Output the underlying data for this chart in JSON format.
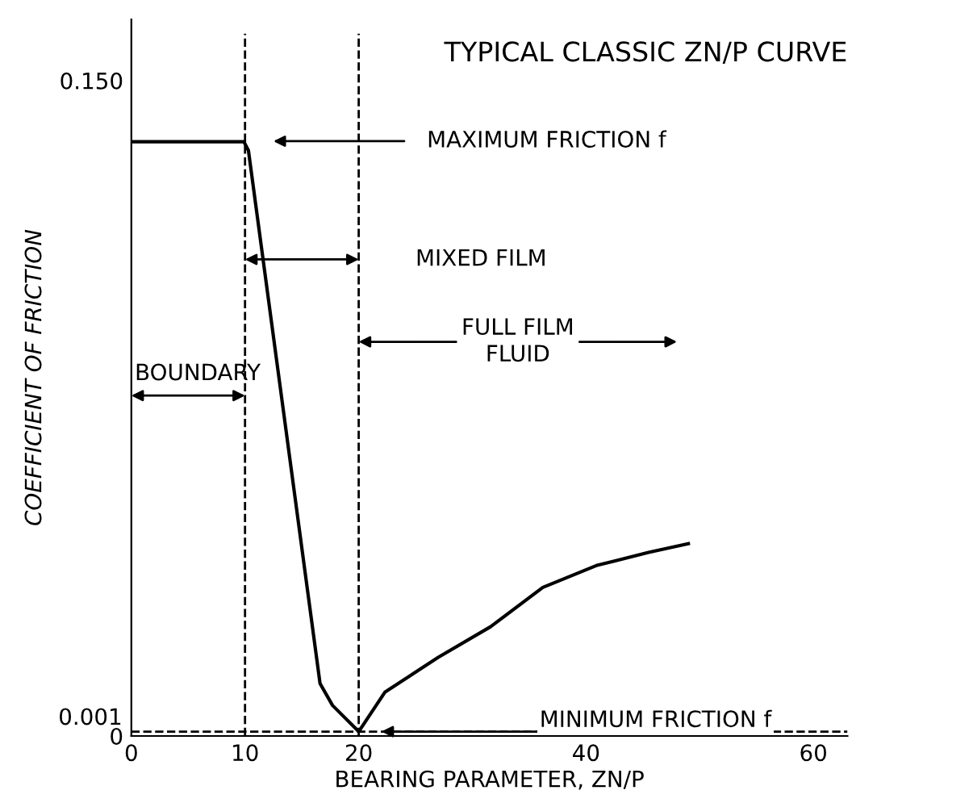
{
  "chart_data": {
    "type": "line",
    "title": "TYPICAL CLASSIC ZN/P CURVE",
    "xlabel": "BEARING PARAMETER, ZN/P",
    "ylabel": "COEFFICIENT OF FRICTION",
    "series": [
      {
        "color": "#000000",
        "x": [
          0,
          9.9,
          10.3,
          16.6,
          17.7,
          20,
          22.3,
          27.0,
          31.6,
          36.2,
          40.9,
          45.5,
          49.0
        ],
        "values": [
          0.136,
          0.136,
          0.134,
          0.012,
          0.007,
          0.001,
          0.01,
          0.018,
          0.025,
          0.034,
          0.039,
          0.042,
          0.044
        ]
      }
    ],
    "xlim": [
      0,
      63
    ],
    "ylim": [
      0,
      0.164
    ],
    "xticks": [
      0,
      10,
      20,
      40,
      60
    ],
    "yticks": [
      0,
      {
        "value": 0.15,
        "label": "0.150"
      }
    ],
    "ref_lines": [
      {
        "axis": "x",
        "value": 10,
        "line_style": "dashed",
        "color": "#000000"
      },
      {
        "axis": "x",
        "value": 20,
        "line_style": "dashed",
        "color": "#000000"
      },
      {
        "axis": "y",
        "value": 0.001,
        "line_style": "dashed",
        "color": "#000000",
        "label": "0.001"
      }
    ],
    "annotations": [
      "MAXIMUM FRICTION f",
      "MIXED FILM",
      "BOUNDARY",
      "FULL FILM\nFLUID",
      {
        "text": "MINIMUM FRICTION f",
        "x": 22,
        "y": 0.001
      }
    ],
    "grid": false,
    "marker": "none",
    "line_style": "solid"
  }
}
